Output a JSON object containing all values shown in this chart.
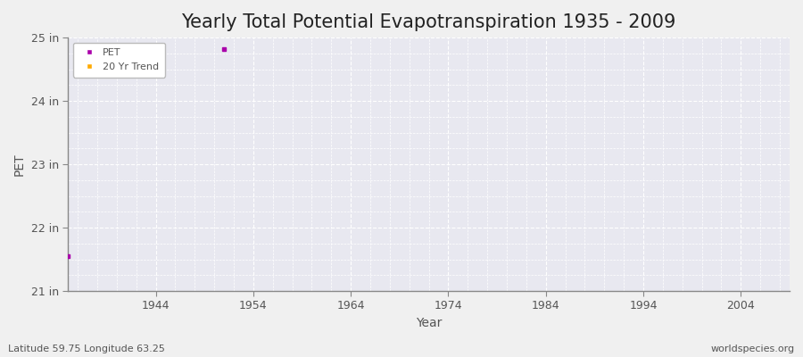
{
  "title": "Yearly Total Potential Evapotranspiration 1935 - 2009",
  "xlabel": "Year",
  "ylabel": "PET",
  "xlim": [
    1935,
    2009
  ],
  "ylim": [
    21,
    25
  ],
  "yticks": [
    21,
    22,
    23,
    24,
    25
  ],
  "ytick_labels": [
    "21 in",
    "22 in",
    "23 in",
    "24 in",
    "25 in"
  ],
  "xticks": [
    1944,
    1954,
    1964,
    1974,
    1984,
    1994,
    2004
  ],
  "figure_bg_color": "#f0f0f0",
  "plot_bg_color": "#e8e8f0",
  "grid_color": "#ffffff",
  "grid_minor_color": "#ffffff",
  "spine_color": "#888888",
  "tick_color": "#555555",
  "pet_color": "#aa00aa",
  "trend_color": "#ffaa00",
  "pet_points": [
    [
      1935,
      21.55
    ],
    [
      1951,
      24.82
    ]
  ],
  "legend_labels": [
    "PET",
    "20 Yr Trend"
  ],
  "subtitle_left": "Latitude 59.75 Longitude 63.25",
  "subtitle_right": "worldspecies.org",
  "title_fontsize": 15,
  "label_fontsize": 10,
  "tick_fontsize": 9,
  "subtitle_fontsize": 8
}
